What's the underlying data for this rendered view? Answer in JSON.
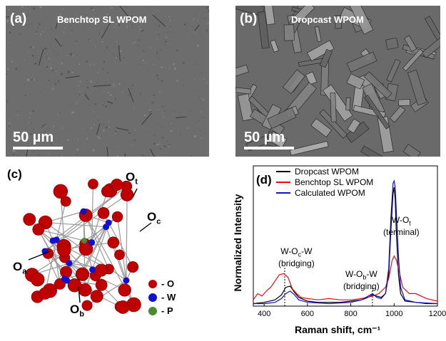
{
  "panel_a": {
    "label": "(a)",
    "title": "Benchtop SL WPOM",
    "scale": "50 µm"
  },
  "panel_b": {
    "label": "(b)",
    "title": "Dropcast WPOM",
    "scale": "50 µm"
  },
  "panel_c": {
    "label": "(c)",
    "labels": {
      "ot_main": "O",
      "ot_sub": "t",
      "oc_main": "O",
      "oc_sub": "c",
      "oa_main": "O",
      "oa_sub": "a",
      "ob_main": "O",
      "ob_sub": "b"
    },
    "legend": [
      {
        "text": "- O",
        "color": "#c00000"
      },
      {
        "text": "- W",
        "color": "#1010d0"
      },
      {
        "text": "- P",
        "color": "#4a8a30"
      }
    ]
  },
  "panel_d": {
    "label": "(d)",
    "annotations": {
      "woc_line1_pre": "W-O",
      "woc_line1_sub": "c",
      "woc_line1_post": "-W",
      "woc_line2": "(bridging)",
      "wob_line1_pre": "W-O",
      "wob_line1_sub": "b",
      "wob_line1_post": "-W",
      "wob_line2": "(bridging)",
      "wot_line1_pre": "W-O",
      "wot_line1_sub": "t",
      "wot_line2": "(terminal)"
    }
  },
  "chart_data": {
    "type": "line",
    "xlabel": "Raman shift, cm⁻¹",
    "ylabel": "Normalized Intensity",
    "xlim": [
      350,
      1200
    ],
    "xticks": [
      400,
      600,
      800,
      1000,
      1200
    ],
    "yticks_shown": false,
    "legend_placement": "top-left",
    "series": [
      {
        "name": "Dropcast WPOM",
        "color": "#000000",
        "x": [
          350,
          400,
          450,
          480,
          500,
          520,
          540,
          560,
          600,
          650,
          700,
          750,
          800,
          850,
          880,
          900,
          920,
          940,
          960,
          975,
          985,
          995,
          1000,
          1005,
          1010,
          1020,
          1030,
          1050,
          1100,
          1150,
          1200
        ],
        "y": [
          0.02,
          0.03,
          0.05,
          0.09,
          0.15,
          0.16,
          0.11,
          0.07,
          0.04,
          0.03,
          0.03,
          0.03,
          0.04,
          0.05,
          0.07,
          0.09,
          0.08,
          0.07,
          0.1,
          0.25,
          0.6,
          0.9,
          0.95,
          0.85,
          0.6,
          0.25,
          0.1,
          0.04,
          0.03,
          0.02,
          0.02
        ]
      },
      {
        "name": "Benchtop SL WPOM",
        "color": "#e01010",
        "x": [
          350,
          370,
          390,
          410,
          430,
          450,
          470,
          490,
          510,
          530,
          550,
          570,
          600,
          650,
          700,
          750,
          800,
          850,
          900,
          930,
          960,
          975,
          990,
          1000,
          1010,
          1020,
          1040,
          1070,
          1100,
          1150,
          1200
        ],
        "y": [
          0.05,
          0.1,
          0.08,
          0.12,
          0.15,
          0.2,
          0.25,
          0.26,
          0.23,
          0.14,
          0.1,
          0.07,
          0.06,
          0.05,
          0.06,
          0.05,
          0.05,
          0.06,
          0.08,
          0.1,
          0.15,
          0.22,
          0.36,
          0.4,
          0.37,
          0.3,
          0.15,
          0.1,
          0.1,
          0.06,
          0.04
        ]
      },
      {
        "name": "Calculated WPOM",
        "color": "#1010d0",
        "x": [
          350,
          400,
          450,
          480,
          500,
          520,
          540,
          560,
          600,
          700,
          800,
          850,
          880,
          900,
          920,
          940,
          960,
          975,
          985,
          995,
          1000,
          1005,
          1012,
          1020,
          1030,
          1050,
          1100,
          1200
        ],
        "y": [
          0.02,
          0.02,
          0.03,
          0.06,
          0.1,
          0.12,
          0.09,
          0.05,
          0.03,
          0.02,
          0.03,
          0.05,
          0.08,
          0.1,
          0.07,
          0.06,
          0.1,
          0.3,
          0.7,
          0.98,
          1.0,
          0.95,
          0.7,
          0.4,
          0.15,
          0.05,
          0.03,
          0.02
        ]
      }
    ]
  }
}
